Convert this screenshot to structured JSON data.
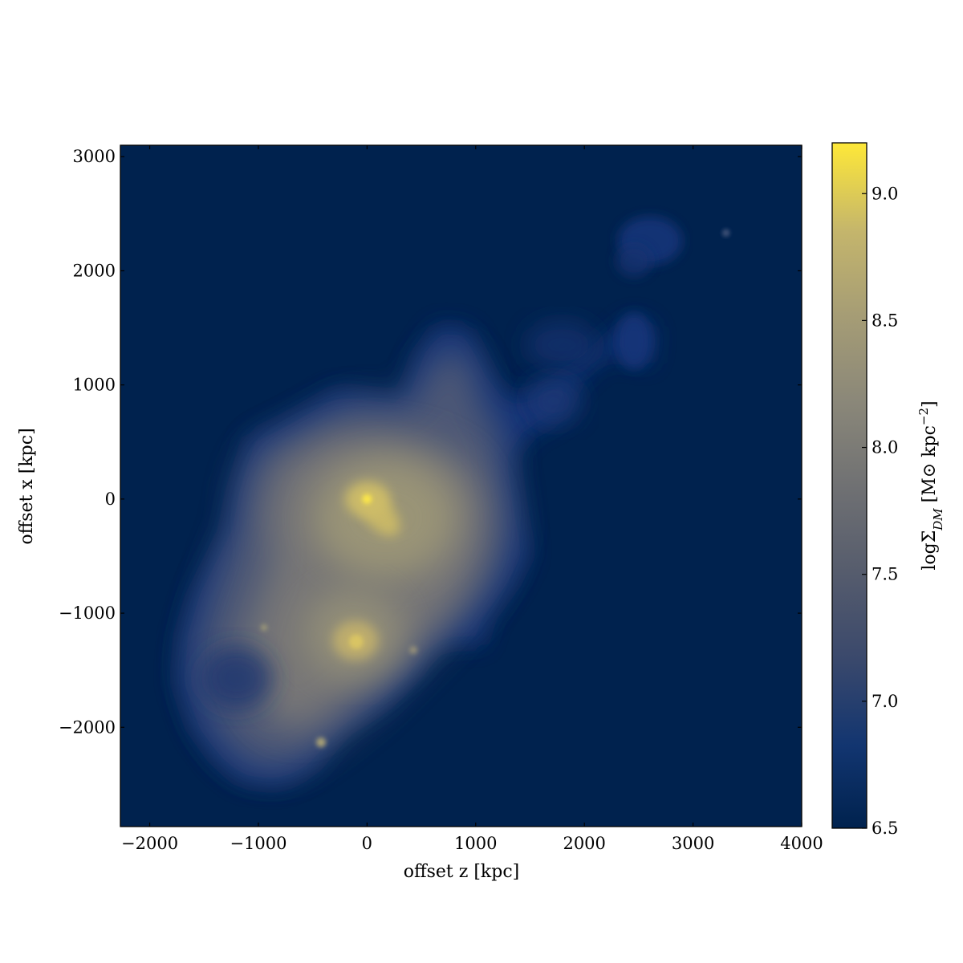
{
  "chart_data": {
    "type": "heatmap",
    "xlabel": "offset z [kpc]",
    "ylabel": "offset x [kpc]",
    "xlim": [
      -2270,
      4000
    ],
    "ylim": [
      -2870,
      3100
    ],
    "xticks": [
      -2000,
      -1000,
      0,
      1000,
      2000,
      3000,
      4000
    ],
    "xtick_labels": [
      "−2000",
      "−1000",
      "0",
      "1000",
      "2000",
      "3000",
      "4000"
    ],
    "yticks": [
      -2000,
      -1000,
      0,
      1000,
      2000,
      3000
    ],
    "ytick_labels": [
      "−2000",
      "−1000",
      "0",
      "1000",
      "2000",
      "3000"
    ],
    "colorbar": {
      "label": "logΣ_DM [M⊙ kpc−2]",
      "range": [
        6.5,
        9.2
      ],
      "ticks": [
        6.5,
        7.0,
        7.5,
        8.0,
        8.5,
        9.0
      ],
      "tick_labels": [
        "6.5",
        "7.0",
        "7.5",
        "8.0",
        "8.5",
        "9.0"
      ],
      "colormap": "cividis",
      "background_color": "#00224e"
    },
    "peaks": [
      {
        "x": 0,
        "y": 0,
        "value": 9.2
      },
      {
        "x": -100,
        "y": -1250,
        "value": 8.7
      },
      {
        "x": 3300,
        "y": 2330,
        "value": 7.2
      }
    ]
  }
}
